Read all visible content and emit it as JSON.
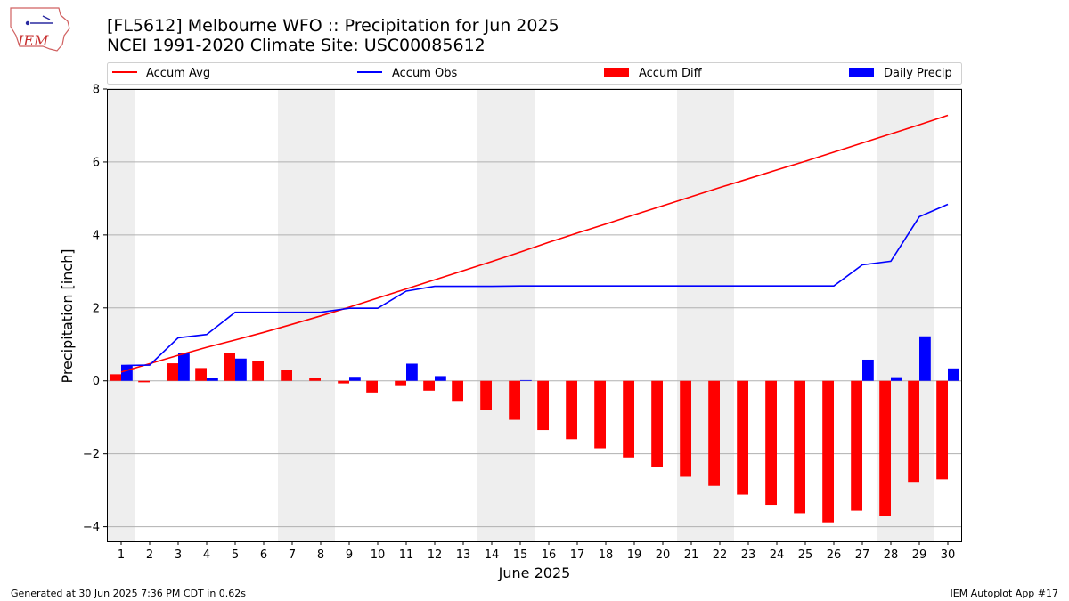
{
  "header": {
    "logo_text": "IEM",
    "title_line1": "[FL5612] Melbourne WFO :: Precipitation for Jun 2025",
    "title_line2": "NCEI 1991-2020 Climate Site: USC00085612"
  },
  "footer": {
    "left": "Generated at 30 Jun 2025 7:36 PM CDT in 0.62s",
    "right": "IEM Autoplot App #17"
  },
  "colors": {
    "accum_avg": "#ff0000",
    "accum_obs": "#0000ff",
    "accum_diff": "#ff0000",
    "daily_precip": "#0000ff",
    "weekend_shade": "#eeeeee",
    "grid": "#b0b0b0"
  },
  "chart_data": {
    "type": "bar",
    "xlabel": "June 2025",
    "ylabel": "Precipitation [inch]",
    "ylim": [
      -4.4,
      8
    ],
    "xlim": [
      0.5,
      30.5
    ],
    "yticks": [
      -4,
      -2,
      0,
      2,
      4,
      6,
      8
    ],
    "ytick_labels": [
      "−4",
      "−2",
      "0",
      "2",
      "4",
      "6",
      "8"
    ],
    "x": [
      1,
      2,
      3,
      4,
      5,
      6,
      7,
      8,
      9,
      10,
      11,
      12,
      13,
      14,
      15,
      16,
      17,
      18,
      19,
      20,
      21,
      22,
      23,
      24,
      25,
      26,
      27,
      28,
      29,
      30
    ],
    "xtick_labels": [
      "1",
      "2",
      "3",
      "4",
      "5",
      "6",
      "7",
      "8",
      "9",
      "10",
      "11",
      "12",
      "13",
      "14",
      "15",
      "16",
      "17",
      "18",
      "19",
      "20",
      "21",
      "22",
      "23",
      "24",
      "25",
      "26",
      "27",
      "28",
      "29",
      "30"
    ],
    "grid": "y",
    "legend_placement": "top, above plot",
    "weekend_spans": [
      [
        1,
        1
      ],
      [
        7,
        8
      ],
      [
        14,
        15
      ],
      [
        21,
        22
      ],
      [
        28,
        29
      ]
    ],
    "series": [
      {
        "name": "Accum Avg",
        "kind": "line",
        "values": [
          0.24,
          0.47,
          0.7,
          0.92,
          1.12,
          1.33,
          1.55,
          1.78,
          2.02,
          2.27,
          2.52,
          2.77,
          3.02,
          3.27,
          3.53,
          3.8,
          4.05,
          4.3,
          4.55,
          4.8,
          5.05,
          5.3,
          5.54,
          5.78,
          6.02,
          6.27,
          6.52,
          6.77,
          7.02,
          7.28
        ]
      },
      {
        "name": "Accum Obs",
        "kind": "line",
        "values": [
          0.42,
          0.43,
          1.18,
          1.27,
          1.88,
          1.88,
          1.88,
          1.88,
          1.99,
          1.99,
          2.46,
          2.59,
          2.59,
          2.59,
          2.6,
          2.6,
          2.6,
          2.6,
          2.6,
          2.6,
          2.6,
          2.6,
          2.6,
          2.6,
          2.6,
          2.6,
          3.18,
          3.28,
          4.5,
          4.84
        ]
      },
      {
        "name": "Accum Diff",
        "kind": "bar",
        "values": [
          0.18,
          -0.04,
          0.48,
          0.35,
          0.76,
          0.55,
          0.3,
          0.08,
          -0.07,
          -0.32,
          -0.12,
          -0.27,
          -0.55,
          -0.8,
          -1.07,
          -1.35,
          -1.6,
          -1.85,
          -2.1,
          -2.36,
          -2.63,
          -2.88,
          -3.12,
          -3.4,
          -3.63,
          -3.88,
          -3.56,
          -3.71,
          -2.77,
          -2.7
        ]
      },
      {
        "name": "Daily Precip",
        "kind": "bar",
        "values": [
          0.42,
          0.0,
          0.75,
          0.09,
          0.61,
          0.0,
          0.0,
          0.0,
          0.11,
          0.0,
          0.47,
          0.13,
          0.0,
          0.0,
          0.02,
          0.0,
          0.0,
          0.0,
          0.0,
          0.0,
          0.0,
          0.0,
          0.0,
          0.0,
          0.0,
          0.0,
          0.58,
          0.1,
          1.22,
          0.34
        ]
      }
    ]
  }
}
